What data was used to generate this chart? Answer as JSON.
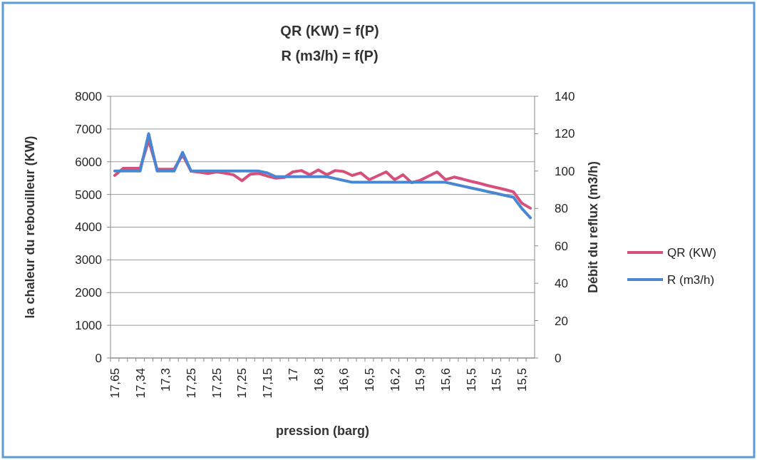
{
  "chart_data": {
    "type": "line",
    "title": "QR (KW) = f(P)",
    "subtitle": "R (m3/h) = f(P)",
    "xlabel": "pression (barg)",
    "ylabel": "la chaleur du rebouilleur (KW)",
    "y2label": "Débit du reflux (m3/h)",
    "categories": [
      "17,65",
      null,
      null,
      "17,34",
      null,
      null,
      "17,3",
      null,
      null,
      "17,25",
      null,
      null,
      "17,25",
      null,
      null,
      "17,25",
      null,
      null,
      "17,15",
      null,
      null,
      "17",
      null,
      null,
      "16,8",
      null,
      null,
      "16,6",
      null,
      null,
      "16,5",
      null,
      null,
      "16,2",
      null,
      null,
      "15,9",
      null,
      null,
      "15,6",
      null,
      null,
      "15,5",
      null,
      null,
      "15,5",
      null,
      null,
      "15,5",
      null
    ],
    "series": [
      {
        "name": "QR (KW)",
        "color": "#d6507a",
        "values": [
          5580,
          5800,
          5800,
          5800,
          6650,
          5770,
          5770,
          5770,
          6210,
          5710,
          5680,
          5640,
          5690,
          5650,
          5600,
          5420,
          5620,
          5640,
          5560,
          5500,
          5520,
          5690,
          5730,
          5600,
          5750,
          5600,
          5730,
          5700,
          5580,
          5660,
          5450,
          5570,
          5690,
          5450,
          5600,
          5360,
          5430,
          5560,
          5690,
          5450,
          5530,
          5470,
          5400,
          5340,
          5270,
          5210,
          5150,
          5080,
          4730,
          4580
        ]
      },
      {
        "name": "R (m3/h)",
        "color": "#4a87d2",
        "axis": "y2",
        "values": [
          100,
          100,
          100,
          100,
          120,
          100,
          100,
          100,
          110,
          100,
          100,
          100,
          100,
          100,
          100,
          100,
          100,
          100,
          99,
          97,
          97,
          97,
          97,
          97,
          97,
          97,
          96,
          95,
          94,
          94,
          94,
          94,
          94,
          94,
          94,
          94,
          94,
          94,
          94,
          94,
          93,
          92,
          91,
          90,
          89,
          88,
          87,
          86,
          80,
          75
        ]
      }
    ],
    "ylim": [
      0,
      8000
    ],
    "yticks": [
      0,
      1000,
      2000,
      3000,
      4000,
      5000,
      6000,
      7000,
      8000
    ],
    "y2lim": [
      0,
      140
    ],
    "y2ticks": [
      0,
      20,
      40,
      60,
      80,
      100,
      120,
      140
    ],
    "grid": "y",
    "legend": "right",
    "marker": "none",
    "line_style": "solid"
  }
}
